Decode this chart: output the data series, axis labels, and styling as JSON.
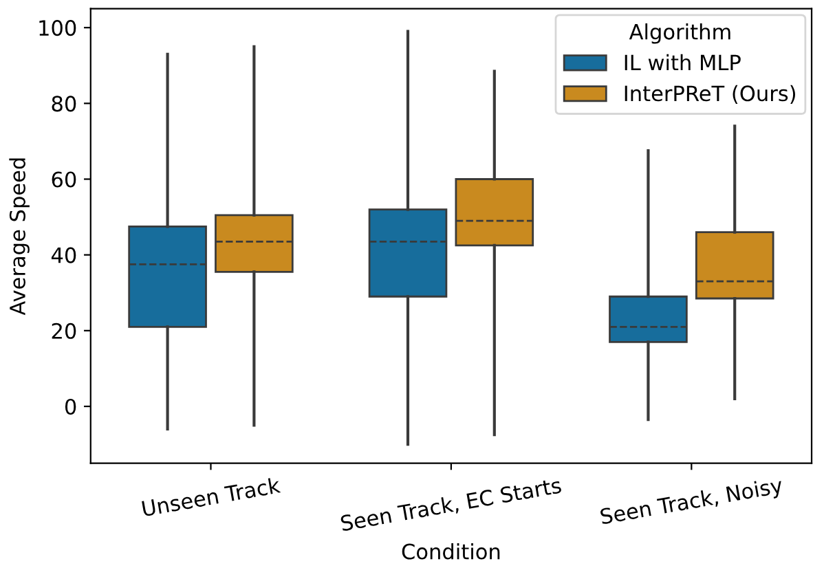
{
  "chart_data": {
    "type": "box",
    "xlabel": "Condition",
    "ylabel": "Average Speed",
    "legend_title": "Algorithm",
    "legend": "top right",
    "grid": false,
    "categories": [
      "Unseen Track",
      "Seen Track, EC Starts",
      "Seen Track, Noisy"
    ],
    "ylim": [
      -15,
      105
    ],
    "yticks": [
      0,
      20,
      40,
      60,
      80,
      100
    ],
    "series": [
      {
        "name": "IL with MLP",
        "color": "#176d9c",
        "boxes": [
          {
            "low": -6,
            "q1": 21,
            "median": 37.5,
            "q3": 47.5,
            "high": 93
          },
          {
            "low": -10,
            "q1": 29,
            "median": 43.5,
            "q3": 52,
            "high": 99
          },
          {
            "low": -3.5,
            "q1": 17,
            "median": 21,
            "q3": 29,
            "high": 67.5
          }
        ]
      },
      {
        "name": "InterPReT (Ours)",
        "color": "#c98a1f",
        "boxes": [
          {
            "low": -5,
            "q1": 35.5,
            "median": 43.5,
            "q3": 50.5,
            "high": 95
          },
          {
            "low": -7.5,
            "q1": 42.5,
            "median": 49,
            "q3": 60,
            "high": 88.5
          },
          {
            "low": 2,
            "q1": 28.5,
            "median": 33,
            "q3": 46,
            "high": 74
          }
        ]
      }
    ]
  }
}
